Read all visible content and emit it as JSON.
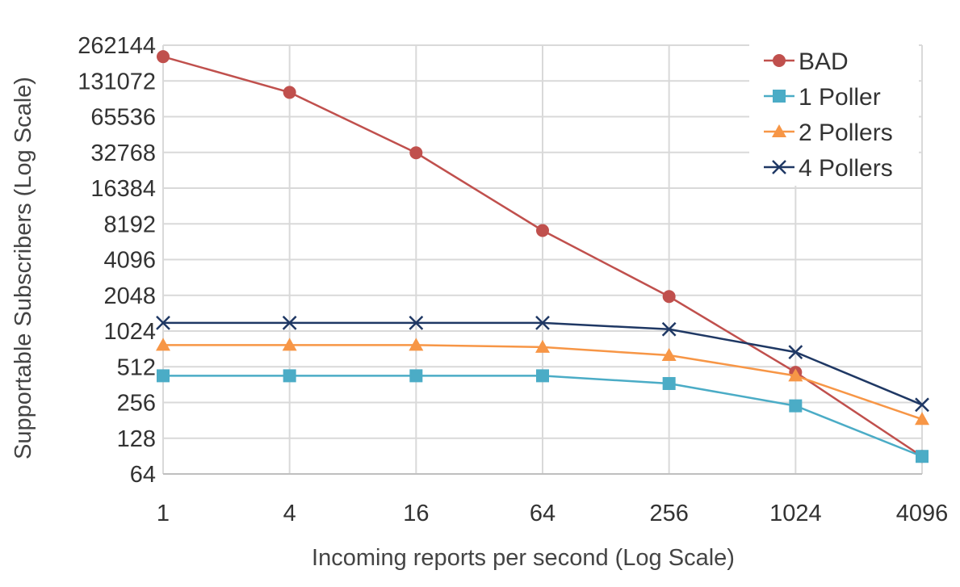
{
  "chart_data": {
    "type": "line",
    "title": "",
    "xlabel": "Incoming reports per second (Log Scale)",
    "ylabel": "Supportable Subscribers (Log Scale)",
    "x_scale": "log2",
    "y_scale": "log2",
    "x": [
      1,
      4,
      16,
      64,
      256,
      1024,
      4096
    ],
    "x_tick_labels": [
      "1",
      "4",
      "16",
      "64",
      "256",
      "1024",
      "4096"
    ],
    "y_tick_labels": [
      "64",
      "128",
      "256",
      "512",
      "1024",
      "2048",
      "4096",
      "8192",
      "16384",
      "32768",
      "65536",
      "131072",
      "262144"
    ],
    "ylim": [
      64,
      262144
    ],
    "xlim": [
      1,
      4096
    ],
    "grid": true,
    "legend_position": "top-right",
    "series": [
      {
        "name": "BAD",
        "color": "#C0504D",
        "marker": "circle",
        "values": [
          210000,
          105000,
          32500,
          7200,
          2000,
          460,
          90
        ]
      },
      {
        "name": "1 Poller",
        "color": "#4BACC6",
        "marker": "square",
        "values": [
          430,
          430,
          430,
          430,
          370,
          240,
          90
        ]
      },
      {
        "name": "2 Pollers",
        "color": "#F79646",
        "marker": "triangle",
        "values": [
          780,
          780,
          780,
          750,
          640,
          430,
          185
        ]
      },
      {
        "name": "4 Pollers",
        "color": "#1F3864",
        "marker": "x",
        "values": [
          1200,
          1200,
          1200,
          1200,
          1060,
          680,
          245
        ]
      }
    ]
  }
}
